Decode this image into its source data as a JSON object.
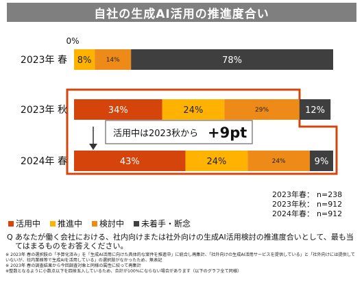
{
  "title": "自社の生成AI活用の推進度合い",
  "colors": {
    "active": "#D4440B",
    "promoting": "#FFB300",
    "considering": "#EE8A18",
    "not_started": "#3F3F3F",
    "highlight": "#D4440B",
    "title_bg": "#7F7F7F"
  },
  "chart_data": {
    "type": "bar",
    "orientation": "horizontal",
    "stacked": true,
    "percent": true,
    "axis_label_top": "0%",
    "categories": [
      "2023年 春",
      "2023年 秋",
      "2024年 春"
    ],
    "series": [
      {
        "name": "活用中",
        "values": [
          0,
          34,
          43
        ],
        "labels": [
          "0%",
          "34%",
          "43%"
        ]
      },
      {
        "name": "推進中",
        "values": [
          8,
          24,
          24
        ],
        "labels": [
          "8%",
          "24%",
          "24%"
        ]
      },
      {
        "name": "検討中",
        "values": [
          14,
          29,
          24
        ],
        "labels": [
          "14%",
          "29%",
          "24%"
        ]
      },
      {
        "name": "未着手・断念",
        "values": [
          78,
          12,
          9
        ],
        "labels": [
          "78%",
          "12%",
          "9%"
        ]
      }
    ],
    "annotation": {
      "text": "活用中は2023秋から",
      "emphasis": "+9pt"
    }
  },
  "legend": [
    {
      "label": "活用中",
      "color_key": "active"
    },
    {
      "label": "推進中",
      "color_key": "promoting"
    },
    {
      "label": "検討中",
      "color_key": "considering"
    },
    {
      "label": "未着手・断念",
      "color_key": "not_started"
    }
  ],
  "samples": [
    {
      "label": "2023年春：",
      "n": "n=238"
    },
    {
      "label": "2023年秋：",
      "n": "n=912"
    },
    {
      "label": "2024年春：",
      "n": "n=912"
    }
  ],
  "question": {
    "mark": "Q",
    "text": "あなたが働く会社における、社内向けまたは社外向けの生成AI活用検討の推進度合いとして、最も当てはまるものをお答えください。"
  },
  "notes": [
    "※ 2023年 春の選択肢の「予算化済み」を「生成AI活用に向けた具体的な案件を推進中」に統合し再集計、「社外向けの生成AI活用サービスを提供している」と「社外向けには提供していないが、社内業務等で生成AIを活用している」の選択肢がなかったため、無表記",
    "※ 2023年 春の調査結果から今回調査対象と同様の属性に絞って再集計",
    "※整数となるように小数点以下を四捨五入しているため、合計が100%にならない場合があります（以下のグラフ全て同様）"
  ]
}
